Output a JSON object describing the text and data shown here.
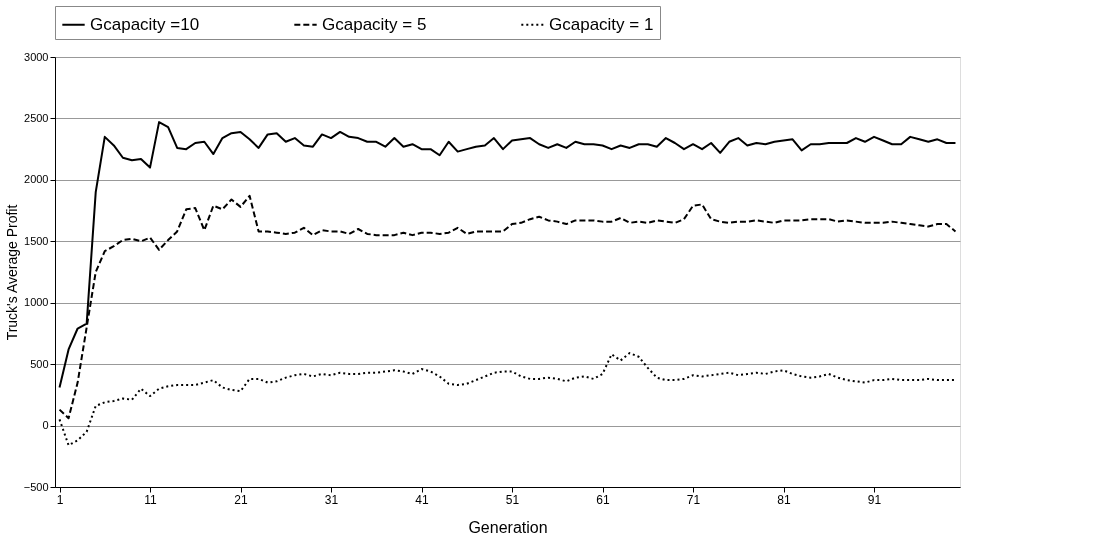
{
  "chart_data": {
    "type": "line",
    "xlabel": "Generation",
    "ylabel": "Truck's Average Profit",
    "x": [
      1,
      2,
      3,
      4,
      5,
      6,
      7,
      8,
      9,
      10,
      11,
      12,
      13,
      14,
      15,
      16,
      17,
      18,
      19,
      20,
      21,
      22,
      23,
      24,
      25,
      26,
      27,
      28,
      29,
      30,
      31,
      32,
      33,
      34,
      35,
      36,
      37,
      38,
      39,
      40,
      41,
      42,
      43,
      44,
      45,
      46,
      47,
      48,
      49,
      50,
      51,
      52,
      53,
      54,
      55,
      56,
      57,
      58,
      59,
      60,
      61,
      62,
      63,
      64,
      65,
      66,
      67,
      68,
      69,
      70,
      71,
      72,
      73,
      74,
      75,
      76,
      77,
      78,
      79,
      80,
      81,
      82,
      83,
      84,
      85,
      86,
      87,
      88,
      89,
      90,
      91,
      92,
      93,
      94,
      95,
      96,
      97,
      98,
      99,
      100
    ],
    "series": [
      {
        "name": "Gcapacity =10",
        "color": "#000000",
        "line_style": "solid",
        "values": [
          310,
          620,
          790,
          830,
          1900,
          2350,
          2280,
          2180,
          2160,
          2170,
          2100,
          2470,
          2430,
          2260,
          2250,
          2300,
          2310,
          2210,
          2340,
          2380,
          2390,
          2330,
          2260,
          2370,
          2380,
          2310,
          2340,
          2280,
          2270,
          2370,
          2340,
          2390,
          2350,
          2340,
          2310,
          2310,
          2270,
          2340,
          2270,
          2290,
          2250,
          2250,
          2200,
          2310,
          2230,
          2250,
          2270,
          2280,
          2340,
          2250,
          2320,
          2330,
          2340,
          2290,
          2260,
          2290,
          2260,
          2310,
          2290,
          2290,
          2280,
          2250,
          2280,
          2260,
          2290,
          2290,
          2270,
          2340,
          2300,
          2250,
          2290,
          2250,
          2300,
          2220,
          2310,
          2340,
          2280,
          2300,
          2290,
          2310,
          2320,
          2330,
          2240,
          2290,
          2290,
          2300,
          2300,
          2300,
          2340,
          2310,
          2350,
          2320,
          2290,
          2290,
          2350,
          2330,
          2310,
          2330,
          2300,
          2300
        ]
      },
      {
        "name": "Gcapacity = 5",
        "color": "#000000",
        "line_style": "dashed",
        "values": [
          130,
          60,
          350,
          800,
          1250,
          1420,
          1460,
          1510,
          1520,
          1500,
          1530,
          1430,
          1510,
          1580,
          1760,
          1770,
          1590,
          1790,
          1760,
          1840,
          1780,
          1870,
          1580,
          1580,
          1570,
          1560,
          1570,
          1610,
          1550,
          1590,
          1580,
          1580,
          1560,
          1600,
          1560,
          1550,
          1550,
          1550,
          1570,
          1550,
          1570,
          1570,
          1560,
          1570,
          1610,
          1560,
          1580,
          1580,
          1580,
          1580,
          1640,
          1650,
          1680,
          1700,
          1670,
          1660,
          1640,
          1670,
          1670,
          1670,
          1660,
          1660,
          1690,
          1650,
          1660,
          1650,
          1670,
          1660,
          1650,
          1680,
          1790,
          1800,
          1680,
          1660,
          1650,
          1660,
          1660,
          1670,
          1660,
          1650,
          1670,
          1670,
          1670,
          1680,
          1680,
          1680,
          1660,
          1670,
          1660,
          1650,
          1650,
          1650,
          1660,
          1650,
          1640,
          1630,
          1620,
          1640,
          1640,
          1580
        ]
      },
      {
        "name": "Gcapacity = 1",
        "color": "#000000",
        "line_style": "dotted",
        "values": [
          50,
          -160,
          -120,
          -50,
          160,
          190,
          200,
          220,
          210,
          300,
          240,
          300,
          320,
          330,
          330,
          330,
          350,
          370,
          310,
          290,
          280,
          380,
          380,
          350,
          360,
          390,
          410,
          420,
          400,
          420,
          410,
          430,
          420,
          420,
          430,
          430,
          440,
          450,
          440,
          420,
          460,
          440,
          400,
          340,
          330,
          340,
          370,
          400,
          430,
          440,
          440,
          400,
          380,
          380,
          390,
          380,
          360,
          390,
          400,
          380,
          420,
          580,
          530,
          590,
          560,
          470,
          390,
          370,
          370,
          380,
          410,
          400,
          410,
          420,
          430,
          410,
          420,
          430,
          420,
          440,
          450,
          420,
          400,
          390,
          400,
          420,
          390,
          370,
          360,
          350,
          370,
          370,
          380,
          370,
          370,
          370,
          380,
          370,
          370,
          370
        ]
      }
    ],
    "xlim": [
      0.5,
      100.5
    ],
    "xticks": [
      1,
      11,
      21,
      31,
      41,
      51,
      61,
      71,
      81,
      91
    ],
    "ylim": [
      -500,
      3000
    ],
    "yticks": [
      -500,
      0,
      500,
      1000,
      1500,
      2000,
      2500,
      3000
    ],
    "grid": "y",
    "legend": "top"
  }
}
